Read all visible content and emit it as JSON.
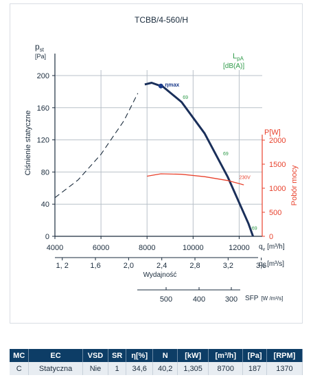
{
  "chart_data": {
    "type": "line",
    "title": "TCBB/4-560/H",
    "y_axis": {
      "symbol": "p",
      "subscript": "st",
      "unit": "[Pa]",
      "label": "Ciśnienie statyczne",
      "range": [
        0,
        200
      ],
      "ticks": [
        "0",
        "40",
        "80",
        "120",
        "160",
        "200"
      ]
    },
    "x_axis": {
      "range": [
        4000,
        13000
      ],
      "ticks": [
        "4000",
        "6000",
        "8000",
        "10000",
        "12000"
      ],
      "symbol": "q",
      "subscript": "v",
      "unit": "[m³/h]"
    },
    "x_axis_secondary": {
      "ticks": [
        "1, 2",
        "1,6",
        "2,0",
        "2,4",
        "2,8",
        "3,2",
        "3,6"
      ],
      "symbol": "q",
      "subscript": "v",
      "unit": "[m³/s]",
      "label": "Wydajność"
    },
    "sfp_axis": {
      "ticks": [
        "500",
        "400",
        "300"
      ],
      "label": "SFP",
      "unit": "[W /m³/s]"
    },
    "power_axis": {
      "symbol": "P",
      "unit": "[W]",
      "label": "Pobór mocy",
      "range": [
        0,
        2000
      ],
      "ticks": [
        "0",
        "500",
        "1000",
        "1500",
        "2000"
      ]
    },
    "noise_legend": {
      "symbol": "L",
      "subscript": "pA",
      "unit": "[dB(A)]"
    },
    "series": [
      {
        "type": "dashed",
        "x": [
          4000,
          5000,
          6000,
          7000,
          7600
        ],
        "y": [
          48,
          70,
          102,
          144,
          178
        ]
      },
      {
        "type": "pressure",
        "x": [
          7900,
          8200,
          8700,
          9500,
          10500,
          11500,
          12400,
          12600
        ],
        "y": [
          189,
          191,
          186,
          167,
          128,
          74,
          16,
          0
        ]
      },
      {
        "type": "power",
        "x": [
          8000,
          8600,
          9500,
          10500,
          11500,
          12200
        ],
        "y": [
          1250,
          1300,
          1290,
          1240,
          1160,
          1070
        ]
      }
    ],
    "annotations": [
      {
        "text": "ηmax",
        "x": 8600,
        "y": 187
      },
      {
        "text": "69",
        "x": 9550,
        "y": 171
      },
      {
        "text": "69",
        "x": 11300,
        "y": 101
      },
      {
        "text": "230V",
        "x": 12000,
        "y": 1190
      },
      {
        "text": "69",
        "x": 12550,
        "y": 8
      }
    ],
    "colors": {
      "pressure": "#1a2f5a",
      "power": "#e8412c",
      "grid": "#b8c0c8",
      "noise": "#2e9a48"
    }
  },
  "table": {
    "headers": [
      "MC",
      "EC",
      "VSD",
      "SR",
      "η[%]",
      "N",
      "[kW]",
      "[m³/h]",
      "[Pa]",
      "[RPM]"
    ],
    "row": [
      "C",
      "Statyczna",
      "Nie",
      "1",
      "34,6",
      "40,2",
      "1,305",
      "8700",
      "187",
      "1370"
    ]
  }
}
